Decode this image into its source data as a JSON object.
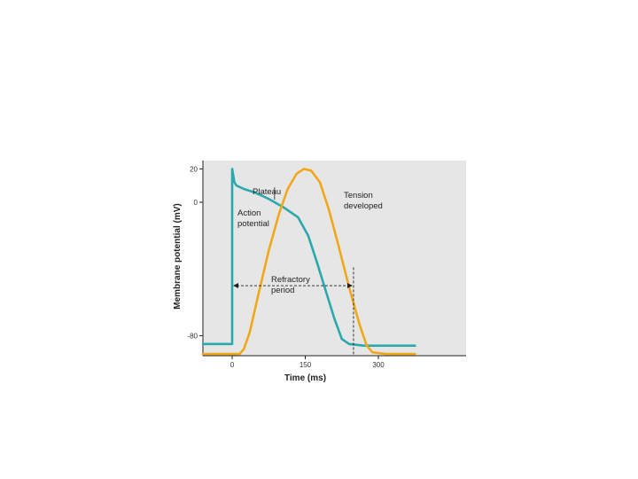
{
  "chart_data": {
    "type": "line",
    "title": "",
    "xlabel": "Time (ms)",
    "ylabel": "Membrane potential (mV)",
    "xlim": [
      -20,
      160
    ],
    "ylim": [
      -92,
      25
    ],
    "x_ticks": [
      {
        "value": 0,
        "label": "0"
      },
      {
        "value": 50,
        "label": "150"
      },
      {
        "value": 100,
        "label": "300"
      }
    ],
    "y_ticks": [
      {
        "value": 20,
        "label": "20"
      },
      {
        "value": 0,
        "label": "0"
      },
      {
        "value": -80,
        "label": "-80"
      }
    ],
    "grid": false,
    "legend": "none",
    "background": "#e6e6e6",
    "series": [
      {
        "name": "",
        "color": "#2aa8ac",
        "points": [
          [
            -20,
            -85
          ],
          [
            0,
            -85
          ],
          [
            0,
            20
          ],
          [
            1.5,
            12
          ],
          [
            3,
            10
          ],
          [
            8,
            8
          ],
          [
            15,
            6
          ],
          [
            25,
            2
          ],
          [
            35,
            -3
          ],
          [
            45,
            -9
          ],
          [
            52,
            -20
          ],
          [
            58,
            -36
          ],
          [
            64,
            -53
          ],
          [
            70,
            -70
          ],
          [
            75,
            -82
          ],
          [
            80,
            -85
          ],
          [
            90,
            -86
          ],
          [
            100,
            -86
          ],
          [
            110,
            -86
          ],
          [
            125,
            -86
          ]
        ]
      },
      {
        "name": "",
        "color": "#f0a818",
        "points": [
          [
            -20,
            -91
          ],
          [
            5,
            -91
          ],
          [
            8,
            -88
          ],
          [
            12,
            -78
          ],
          [
            18,
            -55
          ],
          [
            25,
            -29
          ],
          [
            32,
            -7
          ],
          [
            38,
            8
          ],
          [
            44,
            17
          ],
          [
            49,
            20
          ],
          [
            54,
            19
          ],
          [
            60,
            12
          ],
          [
            66,
            -4
          ],
          [
            73,
            -27
          ],
          [
            80,
            -51
          ],
          [
            87,
            -73
          ],
          [
            92,
            -86
          ],
          [
            96,
            -90
          ],
          [
            105,
            -91
          ],
          [
            125,
            -91
          ]
        ]
      }
    ],
    "annotations": {
      "plateau": "Plateau",
      "action_potential_line1": "Action",
      "action_potential_line2": "potential",
      "tension_line1": "Tension",
      "tension_line2": "developed",
      "refractory_line1": "Refractory",
      "refractory_line2": "period",
      "refractory_start_x": 0,
      "refractory_end_x": 83,
      "refractory_level_y": -50
    }
  }
}
